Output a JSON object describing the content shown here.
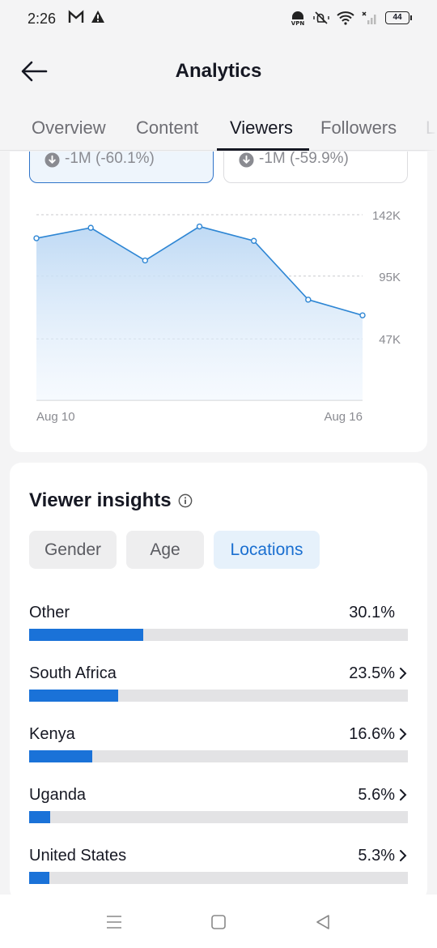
{
  "status_bar": {
    "time": "2:26",
    "battery": "44",
    "left_icons": [
      "gmail-icon",
      "alert-triangle-icon"
    ],
    "right_icons": [
      "vpn-icon",
      "mute-icon",
      "wifi-icon",
      "signal-icon",
      "battery-icon"
    ]
  },
  "header": {
    "title": "Analytics",
    "back_icon": "arrow-left-icon"
  },
  "tabs": [
    {
      "label": "Overview",
      "active": false
    },
    {
      "label": "Content",
      "active": false
    },
    {
      "label": "Viewers",
      "active": true
    },
    {
      "label": "Followers",
      "active": false
    },
    {
      "label": "L",
      "active": false
    }
  ],
  "metrics": [
    {
      "delta": "-1M (-60.1%)",
      "selected": true
    },
    {
      "delta": "-1M (-59.9%)",
      "selected": false
    }
  ],
  "chart_data": {
    "type": "area",
    "x": [
      "Aug 10",
      "Aug 11",
      "Aug 12",
      "Aug 13",
      "Aug 14",
      "Aug 15",
      "Aug 16"
    ],
    "values": [
      124000,
      132000,
      107000,
      133000,
      122000,
      77000,
      65000
    ],
    "xtick_labels": [
      "Aug 10",
      "Aug 16"
    ],
    "yticks": [
      47000,
      95000,
      142000
    ],
    "ytick_labels": [
      "47K",
      "95K",
      "142K"
    ],
    "ylim": [
      0,
      142000
    ],
    "grid": true,
    "color": "#2e86d4"
  },
  "insights": {
    "title": "Viewer insights",
    "chips": [
      {
        "label": "Gender",
        "active": false
      },
      {
        "label": "Age",
        "active": false
      },
      {
        "label": "Locations",
        "active": true
      }
    ],
    "locations": [
      {
        "name": "Other",
        "percent_label": "30.1%",
        "share": 0.301,
        "chevron": false
      },
      {
        "name": "South Africa",
        "percent_label": "23.5%",
        "share": 0.235,
        "chevron": true
      },
      {
        "name": "Kenya",
        "percent_label": "16.6%",
        "share": 0.166,
        "chevron": true
      },
      {
        "name": "Uganda",
        "percent_label": "5.6%",
        "share": 0.056,
        "chevron": true
      },
      {
        "name": "United States",
        "percent_label": "5.3%",
        "share": 0.053,
        "chevron": true
      }
    ]
  },
  "nav": [
    "menu-icon",
    "home-square-icon",
    "back-triangle-icon"
  ]
}
